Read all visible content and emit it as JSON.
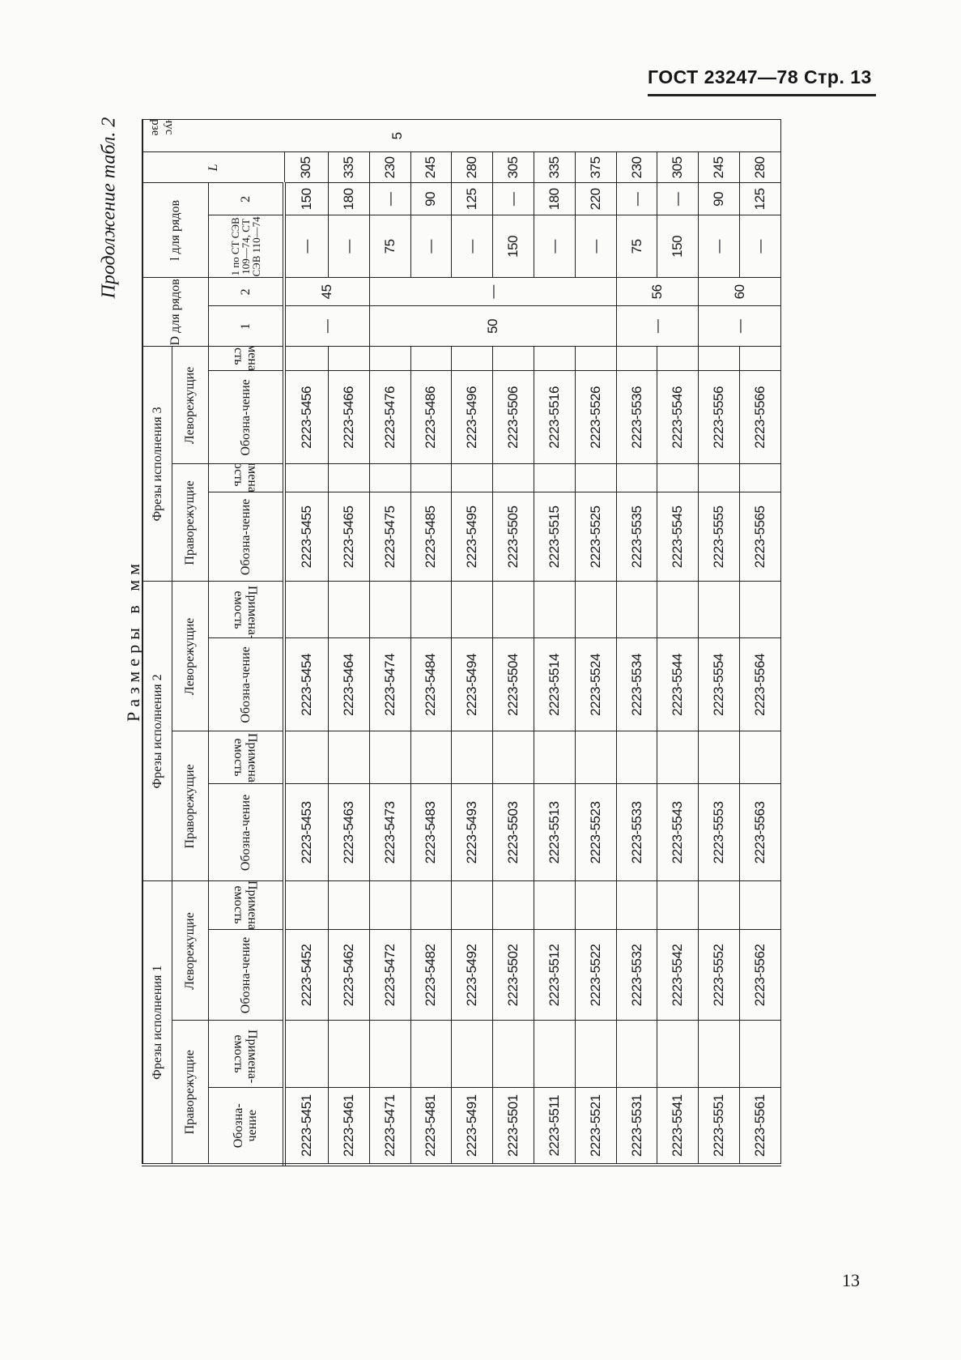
{
  "page": {
    "header": "ГОСТ 23247—78 Стр. 13",
    "continuation": "Продолжение табл. 2",
    "units": "Размеры в мм",
    "page_number": "13"
  },
  "table": {
    "groups": [
      "Фрезы исполнения 1",
      "Фрезы исполнения 2",
      "Фрезы исполнения 3"
    ],
    "right_label": "Праворежущие",
    "left_label": "Леворежущие",
    "designation": "Обозна-чение",
    "applicability": "Примена-емость",
    "d_header": "D для рядов",
    "l_header": "l для рядов",
    "series_1": "1",
    "series_2": "2",
    "l_series_1": "1 по СТ СЭВ 109—74, СТ СЭВ 110—74",
    "L_header": "L",
    "morse_header": "Конус Морзе",
    "morse_value": "5",
    "rows": [
      {
        "c1": "2223-5451",
        "c2": "2223-5452",
        "c3": "2223-5453",
        "c4": "2223-5454",
        "c5": "2223-5455",
        "c6": "2223-5456",
        "l1": "—",
        "l2": "150",
        "L": "305"
      },
      {
        "c1": "2223-5461",
        "c2": "2223-5462",
        "c3": "2223-5463",
        "c4": "2223-5464",
        "c5": "2223-5465",
        "c6": "2223-5466",
        "l1": "—",
        "l2": "180",
        "L": "335"
      },
      {
        "c1": "2223-5471",
        "c2": "2223-5472",
        "c3": "2223-5473",
        "c4": "2223-5474",
        "c5": "2223-5475",
        "c6": "2223-5476",
        "l1": "75",
        "l2": "—",
        "L": "230"
      },
      {
        "c1": "2223-5481",
        "c2": "2223-5482",
        "c3": "2223-5483",
        "c4": "2223-5484",
        "c5": "2223-5485",
        "c6": "2223-5486",
        "l1": "—",
        "l2": "90",
        "L": "245"
      },
      {
        "c1": "2223-5491",
        "c2": "2223-5492",
        "c3": "2223-5493",
        "c4": "2223-5494",
        "c5": "2223-5495",
        "c6": "2223-5496",
        "l1": "—",
        "l2": "125",
        "L": "280"
      },
      {
        "c1": "2223-5501",
        "c2": "2223-5502",
        "c3": "2223-5503",
        "c4": "2223-5504",
        "c5": "2223-5505",
        "c6": "2223-5506",
        "l1": "150",
        "l2": "—",
        "L": "305"
      },
      {
        "c1": "2223-5511",
        "c2": "2223-5512",
        "c3": "2223-5513",
        "c4": "2223-5514",
        "c5": "2223-5515",
        "c6": "2223-5516",
        "l1": "—",
        "l2": "180",
        "L": "335"
      },
      {
        "c1": "2223-5521",
        "c2": "2223-5522",
        "c3": "2223-5523",
        "c4": "2223-5524",
        "c5": "2223-5525",
        "c6": "2223-5526",
        "l1": "—",
        "l2": "220",
        "L": "375"
      },
      {
        "c1": "2223-5531",
        "c2": "2223-5532",
        "c3": "2223-5533",
        "c4": "2223-5534",
        "c5": "2223-5535",
        "c6": "2223-5536",
        "l1": "75",
        "l2": "—",
        "L": "230"
      },
      {
        "c1": "2223-5541",
        "c2": "2223-5542",
        "c3": "2223-5543",
        "c4": "2223-5544",
        "c5": "2223-5545",
        "c6": "2223-5546",
        "l1": "150",
        "l2": "—",
        "L": "305"
      },
      {
        "c1": "2223-5551",
        "c2": "2223-5552",
        "c3": "2223-5553",
        "c4": "2223-5554",
        "c5": "2223-5555",
        "c6": "2223-5556",
        "l1": "—",
        "l2": "90",
        "L": "245"
      },
      {
        "c1": "2223-5561",
        "c2": "2223-5562",
        "c3": "2223-5563",
        "c4": "2223-5564",
        "c5": "2223-5565",
        "c6": "2223-5566",
        "l1": "—",
        "l2": "125",
        "L": "280"
      }
    ],
    "d_spans": [
      {
        "rows": 2,
        "d1": "—",
        "d2": "45"
      },
      {
        "rows": 6,
        "d1": "50",
        "d2": "—"
      },
      {
        "rows": 2,
        "d1": "—",
        "d2": "56"
      },
      {
        "rows": 2,
        "d1": "—",
        "d2": "60"
      }
    ]
  }
}
